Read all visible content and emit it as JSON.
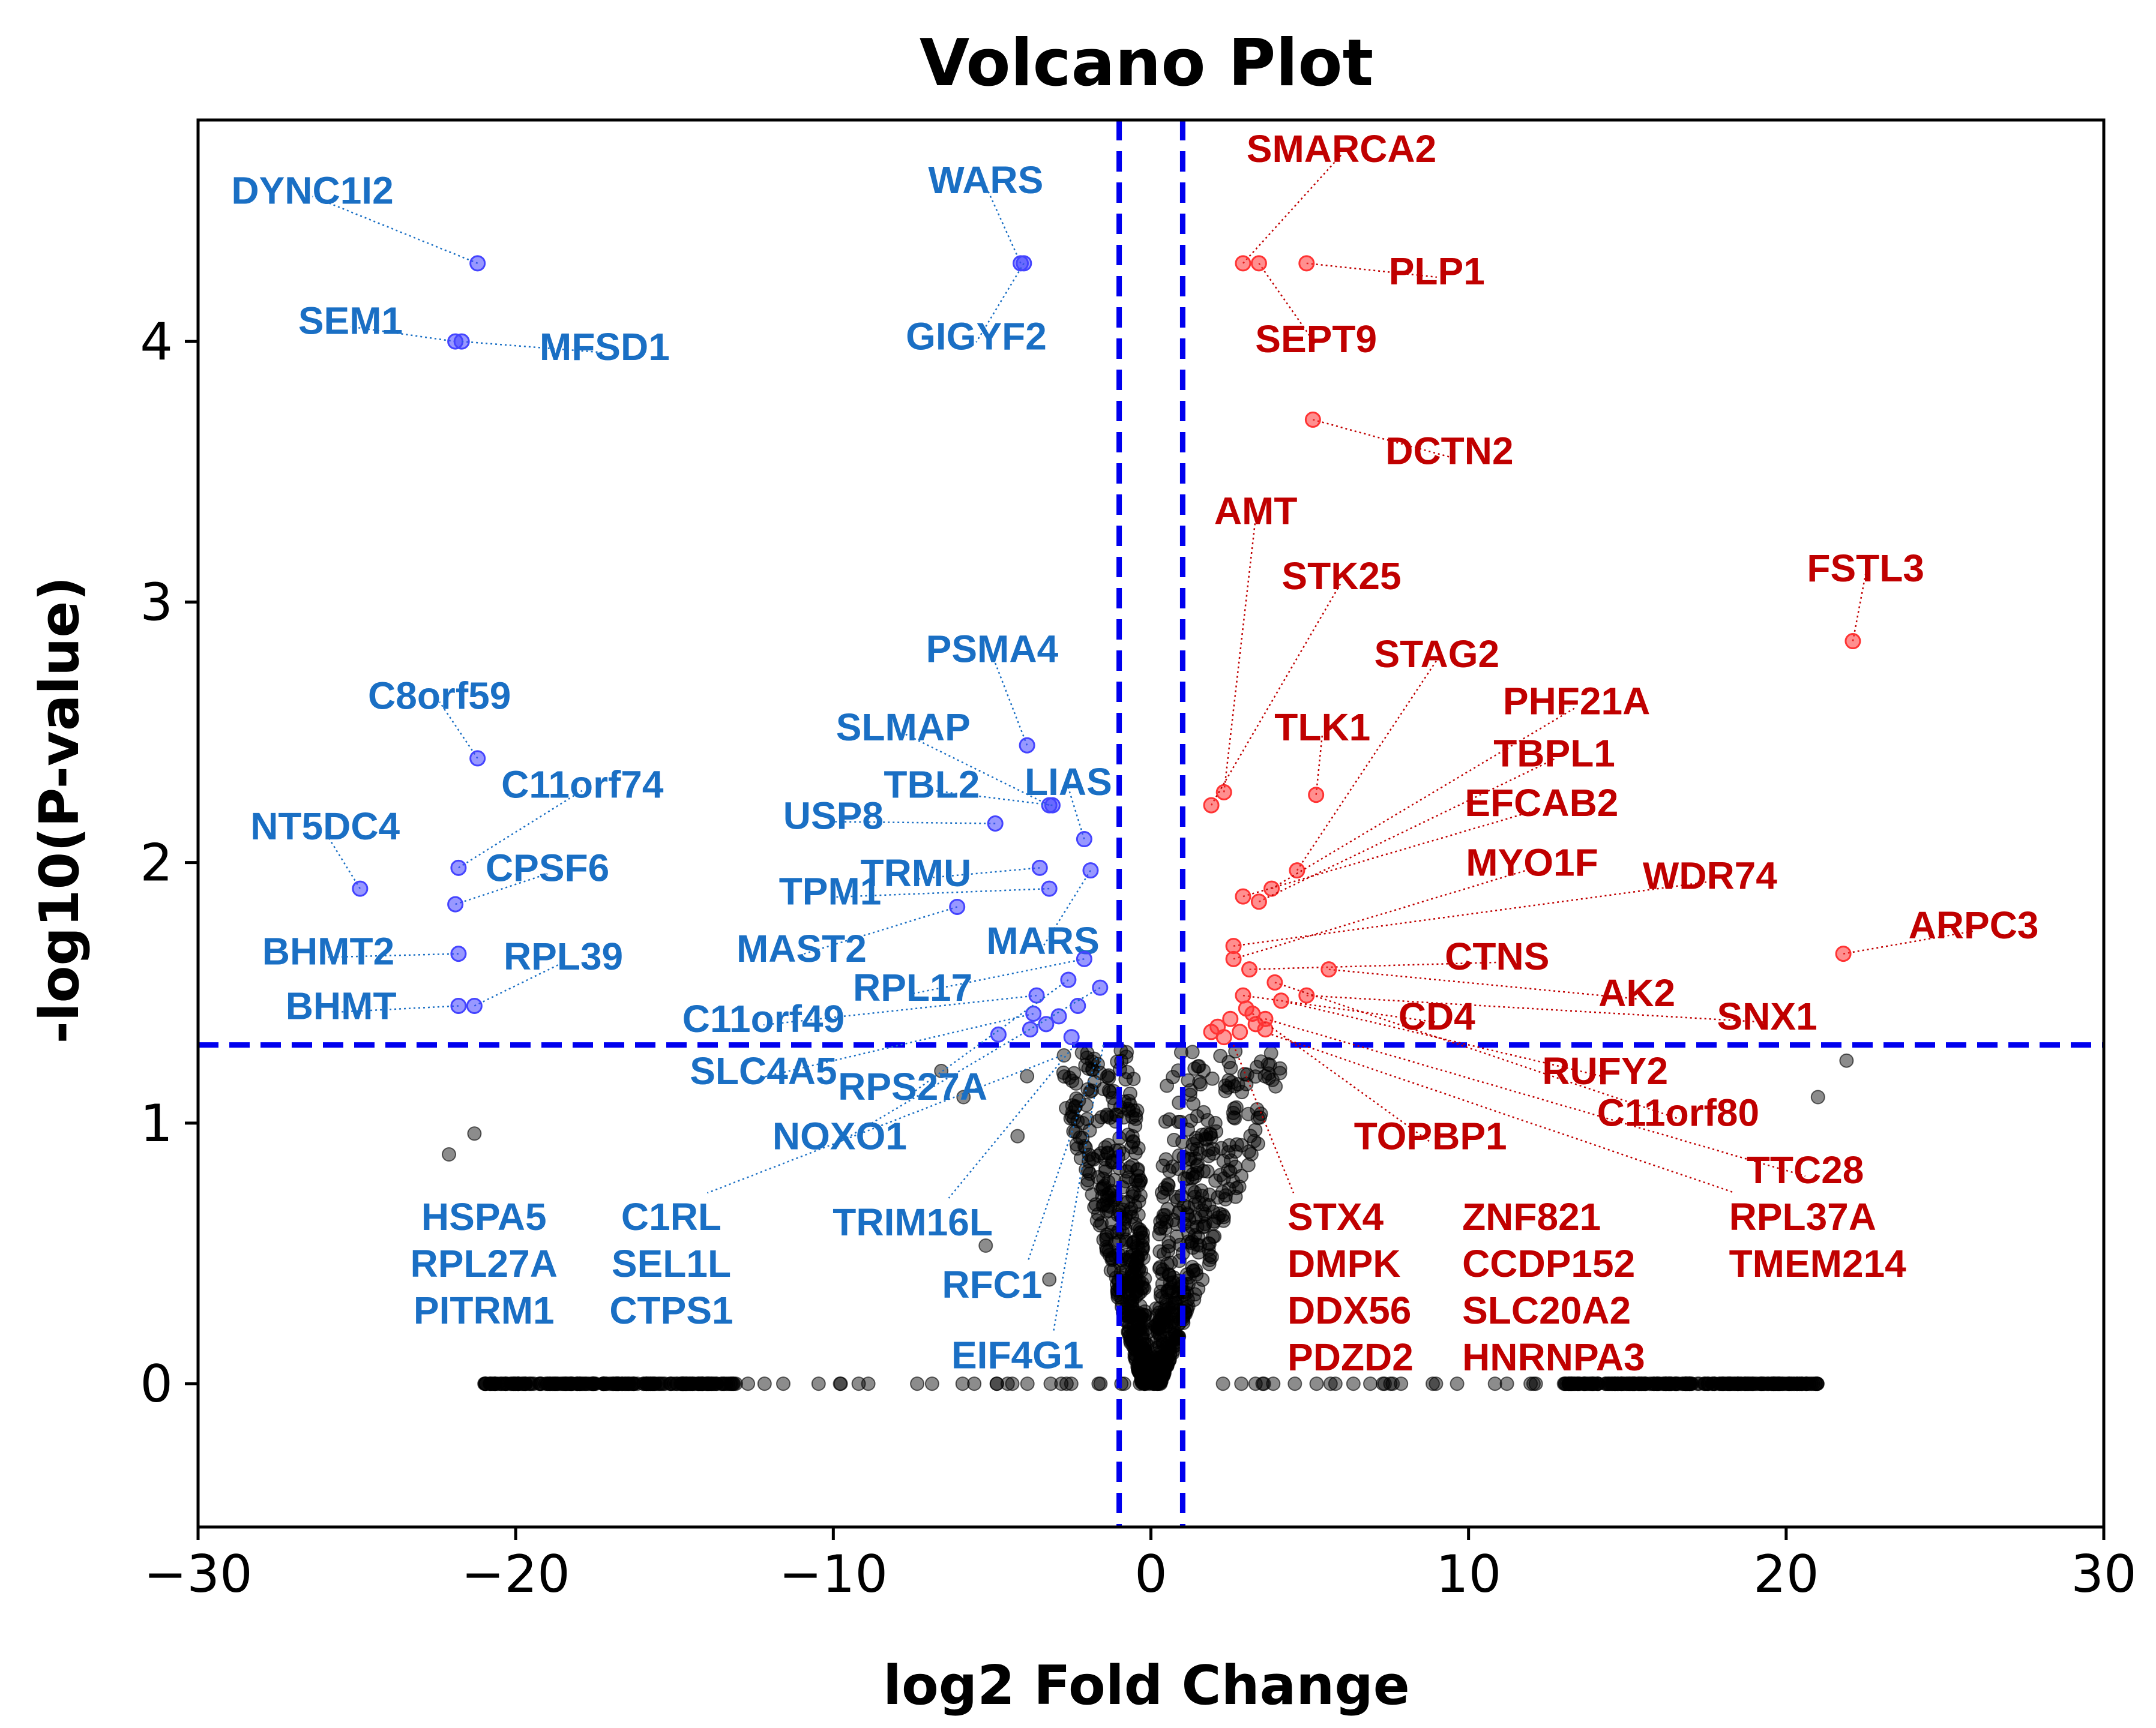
{
  "chart_data": {
    "type": "scatter",
    "title": "Volcano Plot",
    "xlabel": "log2 Fold Change",
    "ylabel": "-log10(P-value)",
    "xlim": [
      -30,
      30
    ],
    "ylim": [
      -0.55,
      4.85
    ],
    "x_ticks": [
      {
        "v": -30,
        "t": "−30"
      },
      {
        "v": -20,
        "t": "−20"
      },
      {
        "v": -10,
        "t": "−10"
      },
      {
        "v": 0,
        "t": "0"
      },
      {
        "v": 10,
        "t": "10"
      },
      {
        "v": 20,
        "t": "20"
      },
      {
        "v": 30,
        "t": "30"
      }
    ],
    "y_ticks": [
      {
        "v": 0,
        "t": "0"
      },
      {
        "v": 1,
        "t": "1"
      },
      {
        "v": 2,
        "t": "2"
      },
      {
        "v": 3,
        "t": "3"
      },
      {
        "v": 4,
        "t": "4"
      }
    ],
    "thresholds": {
      "fold_change": [
        -1,
        1
      ],
      "neg_log10_p": 1.3
    },
    "colors": {
      "down": "#1a6fc4",
      "down_point": "#4444ff",
      "up": "#c00000",
      "up_point": "#ff3333",
      "ns": "#000000",
      "threshold": "#0000ee"
    },
    "series": [
      {
        "name": "down",
        "points": [
          {
            "gene": "DYNC1I2",
            "x": -21.2,
            "y": 4.3,
            "lx": -26.4,
            "ly": 4.58
          },
          {
            "gene": "SEM1",
            "x": -21.9,
            "y": 4.0,
            "lx": -25.2,
            "ly": 4.08
          },
          {
            "gene": "MFSD1",
            "x": -21.7,
            "y": 4.0,
            "lx": -17.2,
            "ly": 3.98
          },
          {
            "gene": "WARS",
            "x": -4.1,
            "y": 4.3,
            "lx": -5.2,
            "ly": 4.62
          },
          {
            "gene": "GIGYF2",
            "x": -4.0,
            "y": 4.3,
            "lx": -5.5,
            "ly": 4.02
          },
          {
            "gene": "C8orf59",
            "x": -21.2,
            "y": 2.4,
            "lx": -22.4,
            "ly": 2.64
          },
          {
            "gene": "C11orf74",
            "x": -21.8,
            "y": 1.98,
            "lx": -17.9,
            "ly": 2.3
          },
          {
            "gene": "NT5DC4",
            "x": -24.9,
            "y": 1.9,
            "lx": -26.0,
            "ly": 2.14
          },
          {
            "gene": "CPSF6",
            "x": -21.9,
            "y": 1.84,
            "lx": -19.0,
            "ly": 1.98
          },
          {
            "gene": "BHMT2",
            "x": -21.8,
            "y": 1.65,
            "lx": -25.9,
            "ly": 1.66
          },
          {
            "gene": "RPL39",
            "x": -21.3,
            "y": 1.45,
            "lx": -18.5,
            "ly": 1.64
          },
          {
            "gene": "BHMT",
            "x": -21.8,
            "y": 1.45,
            "lx": -25.5,
            "ly": 1.45
          },
          {
            "gene": "PSMA4",
            "x": -3.9,
            "y": 2.45,
            "lx": -5.0,
            "ly": 2.82
          },
          {
            "gene": "SLMAP",
            "x": -3.2,
            "y": 2.22,
            "lx": -7.8,
            "ly": 2.52
          },
          {
            "gene": "LIAS",
            "x": -2.1,
            "y": 2.09,
            "lx": -2.6,
            "ly": 2.31
          },
          {
            "gene": "TBL2",
            "x": -3.1,
            "y": 2.22,
            "lx": -6.9,
            "ly": 2.3
          },
          {
            "gene": "USP8",
            "x": -4.9,
            "y": 2.15,
            "lx": -10.0,
            "ly": 2.18
          },
          {
            "gene": "TRMU",
            "x": -3.5,
            "y": 1.98,
            "lx": -7.4,
            "ly": 1.96
          },
          {
            "gene": "TPM1",
            "x": -3.2,
            "y": 1.9,
            "lx": -10.1,
            "ly": 1.89
          },
          {
            "gene": "MARS",
            "x": -1.9,
            "y": 1.97,
            "lx": -3.4,
            "ly": 1.7
          },
          {
            "gene": "MAST2",
            "x": -6.1,
            "y": 1.83,
            "lx": -11.0,
            "ly": 1.67
          },
          {
            "gene": "RPL17",
            "x": -2.1,
            "y": 1.63,
            "lx": -7.5,
            "ly": 1.52
          },
          {
            "gene": "C11orf49",
            "x": -3.6,
            "y": 1.49,
            "lx": -12.2,
            "ly": 1.4
          },
          {
            "gene": "SLC4A5",
            "x": -3.7,
            "y": 1.42,
            "lx": -12.2,
            "ly": 1.2
          },
          {
            "gene": "RPS27A",
            "x": -2.6,
            "y": 1.55,
            "lx": -7.5,
            "ly": 1.14
          },
          {
            "gene": "NOXO1",
            "x": -1.6,
            "y": 1.52,
            "lx": -9.8,
            "ly": 0.95
          }
        ]
      },
      {
        "name": "up",
        "points": [
          {
            "gene": "SMARCA2",
            "x": 2.9,
            "y": 4.3,
            "lx": 6.0,
            "ly": 4.74
          },
          {
            "gene": "PLP1",
            "x": 4.9,
            "y": 4.3,
            "lx": 9.0,
            "ly": 4.27
          },
          {
            "gene": "SEPT9",
            "x": 3.4,
            "y": 4.3,
            "lx": 5.2,
            "ly": 4.01
          },
          {
            "gene": "DCTN2",
            "x": 5.1,
            "y": 3.7,
            "lx": 9.4,
            "ly": 3.58
          },
          {
            "gene": "AMT",
            "x": 2.3,
            "y": 2.27,
            "lx": 3.3,
            "ly": 3.35
          },
          {
            "gene": "STK25",
            "x": 1.9,
            "y": 2.22,
            "lx": 6.0,
            "ly": 3.1
          },
          {
            "gene": "FSTL3",
            "x": 22.1,
            "y": 2.85,
            "lx": 22.5,
            "ly": 3.13
          },
          {
            "gene": "STAG2",
            "x": 4.6,
            "y": 1.97,
            "lx": 9.0,
            "ly": 2.8
          },
          {
            "gene": "PHF21A",
            "x": 3.8,
            "y": 1.9,
            "lx": 13.4,
            "ly": 2.62
          },
          {
            "gene": "TLK1",
            "x": 5.2,
            "y": 2.26,
            "lx": 5.4,
            "ly": 2.52
          },
          {
            "gene": "TBPL1",
            "x": 3.4,
            "y": 1.85,
            "lx": 12.7,
            "ly": 2.42
          },
          {
            "gene": "EFCAB2",
            "x": 2.9,
            "y": 1.87,
            "lx": 12.3,
            "ly": 2.23
          },
          {
            "gene": "MYO1F",
            "x": 2.6,
            "y": 1.63,
            "lx": 12.0,
            "ly": 2.0
          },
          {
            "gene": "WDR74",
            "x": 2.6,
            "y": 1.68,
            "lx": 17.6,
            "ly": 1.95
          },
          {
            "gene": "ARPC3",
            "x": 21.8,
            "y": 1.65,
            "lx": 25.9,
            "ly": 1.76
          },
          {
            "gene": "CTNS",
            "x": 3.1,
            "y": 1.59,
            "lx": 10.9,
            "ly": 1.64
          },
          {
            "gene": "AK2",
            "x": 5.6,
            "y": 1.59,
            "lx": 15.3,
            "ly": 1.5
          },
          {
            "gene": "SNX1",
            "x": 4.9,
            "y": 1.49,
            "lx": 19.4,
            "ly": 1.41
          },
          {
            "gene": "CD4",
            "x": 2.9,
            "y": 1.49,
            "lx": 9.0,
            "ly": 1.41
          },
          {
            "gene": "RUFY2",
            "x": 4.1,
            "y": 1.47,
            "lx": 14.3,
            "ly": 1.2
          },
          {
            "gene": "C11orf80",
            "x": 3.9,
            "y": 1.54,
            "lx": 16.6,
            "ly": 1.04
          },
          {
            "gene": "TOPBP1",
            "x": 3.2,
            "y": 1.42,
            "lx": 8.8,
            "ly": 0.95
          },
          {
            "gene": "TTC28",
            "x": 3.6,
            "y": 1.4,
            "lx": 20.6,
            "ly": 0.82
          }
        ]
      }
    ],
    "label_groups": [
      {
        "color": "down",
        "lines": [
          "HSPA5",
          "RPL27A",
          "PITRM1"
        ],
        "lx": -21.0,
        "ly": 0.64,
        "anchor": "middle"
      },
      {
        "color": "down",
        "lines": [
          "C1RL",
          "SEL1L",
          "CTPS1"
        ],
        "lx": -15.1,
        "ly": 0.64,
        "anchor": "middle",
        "tx": -2.8,
        "ty": 1.26
      },
      {
        "color": "down",
        "lines": [
          "TRIM16L"
        ],
        "lx": -7.5,
        "ly": 0.62,
        "anchor": "middle",
        "tx": -2.4,
        "ty": 1.3
      },
      {
        "color": "down",
        "lines": [
          "RFC1"
        ],
        "lx": -5.0,
        "ly": 0.38,
        "anchor": "middle",
        "tx": -1.7,
        "ty": 1.25
      },
      {
        "color": "down",
        "lines": [
          "EIF4G1"
        ],
        "lx": -4.2,
        "ly": 0.11,
        "anchor": "middle",
        "tx": -1.5,
        "ty": 1.3
      },
      {
        "color": "up",
        "lines": [
          "STX4",
          "DMPK",
          "DDX56",
          "PDZD2"
        ],
        "lx": 4.3,
        "ly": 0.64,
        "anchor": "start",
        "tx": 2.6,
        "ty": 1.3
      },
      {
        "color": "up",
        "lines": [
          "ZNF821",
          "CCDP152",
          "SLC20A2",
          "HNRNPA3"
        ],
        "lx": 9.8,
        "ly": 0.64,
        "anchor": "start"
      },
      {
        "color": "up",
        "lines": [
          "RPL37A",
          "TMEM214"
        ],
        "lx": 18.2,
        "ly": 0.64,
        "anchor": "start",
        "tx": 3.8,
        "ty": 1.34
      }
    ]
  }
}
